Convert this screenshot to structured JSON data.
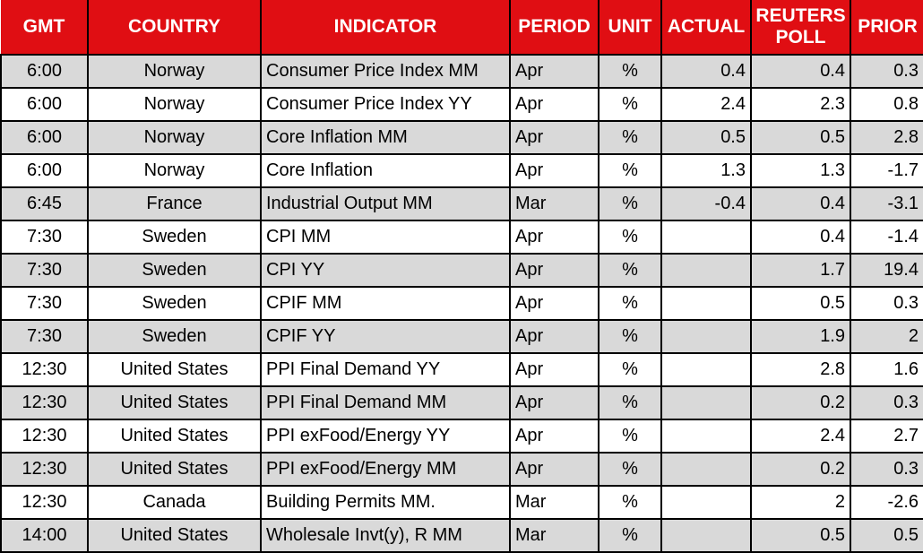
{
  "colors": {
    "header_background": "#E00E13",
    "header_text": "#FFFFFF",
    "row_shade": "#D9D9D9",
    "row_plain": "#FFFFFF",
    "grid_border": "#000000",
    "body_text": "#000000"
  },
  "chart_data": {
    "type": "table",
    "columns": [
      "GMT",
      "COUNTRY",
      "INDICATOR",
      "PERIOD",
      "UNIT",
      "ACTUAL",
      "REUTERS POLL",
      "PRIOR"
    ],
    "rows": [
      [
        "6:00",
        "Norway",
        "Consumer Price Index MM",
        "Apr",
        "%",
        "0.4",
        "0.4",
        "0.3"
      ],
      [
        "6:00",
        "Norway",
        "Consumer Price Index YY",
        "Apr",
        "%",
        "2.4",
        "2.3",
        "0.8"
      ],
      [
        "6:00",
        "Norway",
        "Core Inflation MM",
        "Apr",
        "%",
        "0.5",
        "0.5",
        "2.8"
      ],
      [
        "6:00",
        "Norway",
        "Core Inflation",
        "Apr",
        "%",
        "1.3",
        "1.3",
        "-1.7"
      ],
      [
        "6:45",
        "France",
        "Industrial Output MM",
        "Mar",
        "%",
        "-0.4",
        "0.4",
        "-3.1"
      ],
      [
        "7:30",
        "Sweden",
        "CPI MM",
        "Apr",
        "%",
        "",
        "0.4",
        "-1.4"
      ],
      [
        "7:30",
        "Sweden",
        "CPI YY",
        "Apr",
        "%",
        "",
        "1.7",
        "19.4"
      ],
      [
        "7:30",
        "Sweden",
        "CPIF MM",
        "Apr",
        "%",
        "",
        "0.5",
        "0.3"
      ],
      [
        "7:30",
        "Sweden",
        "CPIF YY",
        "Apr",
        "%",
        "",
        "1.9",
        "2"
      ],
      [
        "12:30",
        "United States",
        "PPI Final Demand YY",
        "Apr",
        "%",
        "",
        "2.8",
        "1.6"
      ],
      [
        "12:30",
        "United States",
        "PPI Final Demand MM",
        "Apr",
        "%",
        "",
        "0.2",
        "0.3"
      ],
      [
        "12:30",
        "United States",
        "PPI exFood/Energy YY",
        "Apr",
        "%",
        "",
        "2.4",
        "2.7"
      ],
      [
        "12:30",
        "United States",
        "PPI exFood/Energy MM",
        "Apr",
        "%",
        "",
        "0.2",
        "0.3"
      ],
      [
        "12:30",
        "Canada",
        "Building Permits MM.",
        "Mar",
        "%",
        "",
        "2",
        "-2.6"
      ],
      [
        "14:00",
        "United States",
        "Wholesale Invt(y), R MM",
        "Mar",
        "%",
        "",
        "0.5",
        "0.5"
      ]
    ]
  }
}
